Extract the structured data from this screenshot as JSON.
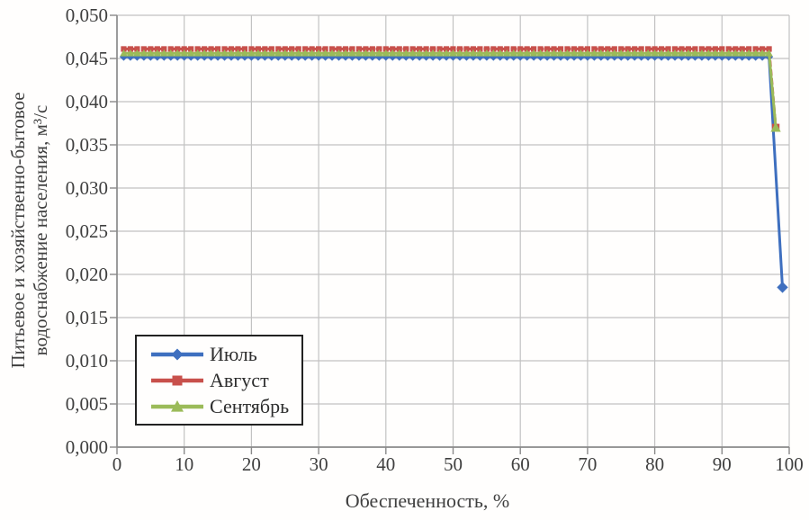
{
  "chart_data": {
    "type": "line",
    "xlabel": "Обеспеченность, %",
    "ylabel": "Питьевое и хозяйственно-бытовое водоснабжение населения, м³/с",
    "ylabel_line1": "Питьевое и хозяйственно-бытовое",
    "ylabel_line2": "водоснабжение населения, м³/с",
    "xlim": [
      0,
      100
    ],
    "ylim": [
      0,
      0.05
    ],
    "x_ticks": [
      0,
      10,
      20,
      30,
      40,
      50,
      60,
      70,
      80,
      90,
      100
    ],
    "x_tick_labels": [
      "0",
      "10",
      "20",
      "30",
      "40",
      "50",
      "60",
      "70",
      "80",
      "90",
      "100"
    ],
    "y_ticks": [
      0,
      0.005,
      0.01,
      0.015,
      0.02,
      0.025,
      0.03,
      0.035,
      0.04,
      0.045,
      0.05
    ],
    "y_tick_labels": [
      "0,000",
      "0,005",
      "0,010",
      "0,015",
      "0,020",
      "0,025",
      "0,030",
      "0,035",
      "0,040",
      "0,045",
      "0,050"
    ],
    "grid": true,
    "legend_position": "lower-left-inside",
    "series": [
      {
        "name": "Июль",
        "color": "#3e6fbf",
        "marker": "diamond",
        "line_style": "solid",
        "flat": {
          "x_from": 1,
          "x_to": 97,
          "step": 1,
          "value": 0.0452
        },
        "end_point": {
          "x": 99,
          "y": 0.0185
        }
      },
      {
        "name": "Август",
        "color": "#c8504b",
        "marker": "square",
        "line_style": "dashed",
        "flat": {
          "x_from": 1,
          "x_to": 97,
          "step": 1,
          "value": 0.0461
        },
        "end_point": {
          "x": 98,
          "y": 0.037
        }
      },
      {
        "name": "Сентябрь",
        "color": "#9bbb59",
        "marker": "triangle",
        "line_style": "solid",
        "flat": {
          "x_from": 1,
          "x_to": 97,
          "step": 1,
          "value": 0.0456
        },
        "end_point": {
          "x": 98,
          "y": 0.037
        }
      }
    ]
  },
  "colors": {
    "grid": "#c2c2c2",
    "axis": "#8a8a8a",
    "text": "#3b3b3b",
    "legend_border": "#222222",
    "background": "#fffefd"
  }
}
